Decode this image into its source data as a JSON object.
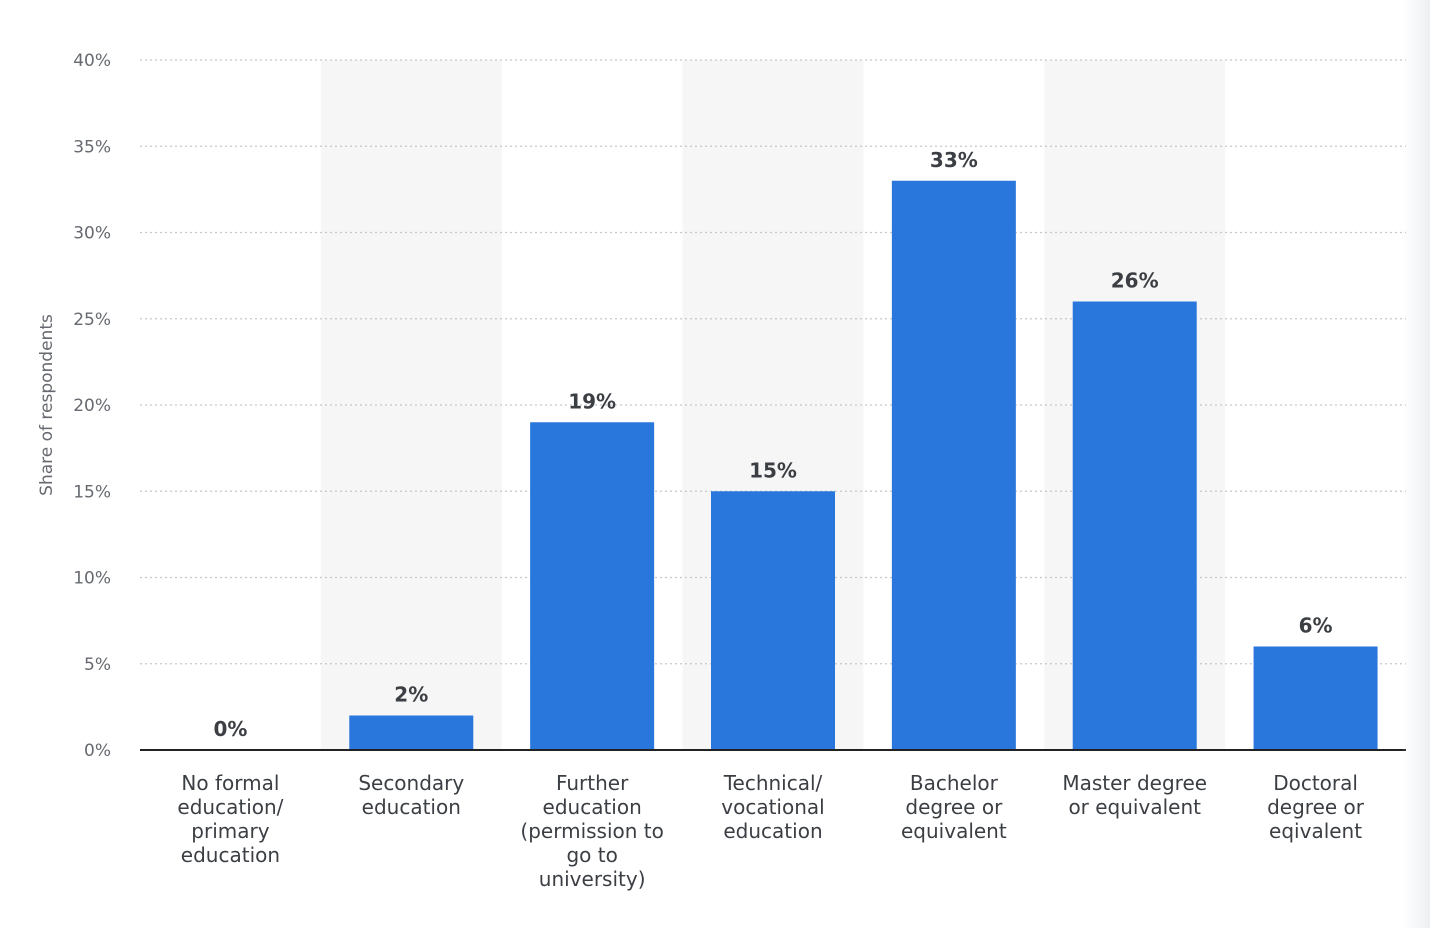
{
  "chart_data": {
    "type": "bar",
    "categories": [
      [
        "No formal",
        "education/",
        "primary",
        "education"
      ],
      [
        "Secondary",
        "education"
      ],
      [
        "Further",
        "education",
        "(permission to",
        "go to",
        "university)"
      ],
      [
        "Technical/",
        "vocational",
        "education"
      ],
      [
        "Bachelor",
        "degree or",
        "equivalent"
      ],
      [
        "Master degree",
        "or equivalent"
      ],
      [
        "Doctoral",
        "degree or",
        "eqivalent"
      ]
    ],
    "values": [
      0,
      2,
      19,
      15,
      33,
      26,
      6
    ],
    "value_labels": [
      "0%",
      "2%",
      "19%",
      "15%",
      "33%",
      "26%",
      "6%"
    ],
    "ylabel": "Share of respondents",
    "ylim": [
      0,
      40
    ],
    "yticks": [
      0,
      5,
      10,
      15,
      20,
      25,
      30,
      35,
      40
    ],
    "ytick_labels": [
      "0%",
      "5%",
      "10%",
      "15%",
      "20%",
      "25%",
      "30%",
      "35%",
      "40%"
    ],
    "grid": true,
    "alternating_column_shading": true,
    "colors": {
      "bar": "#2977dd",
      "column_shade": "#f6f6f6",
      "grid": "#c4c7cb",
      "axis": "#222222"
    }
  }
}
